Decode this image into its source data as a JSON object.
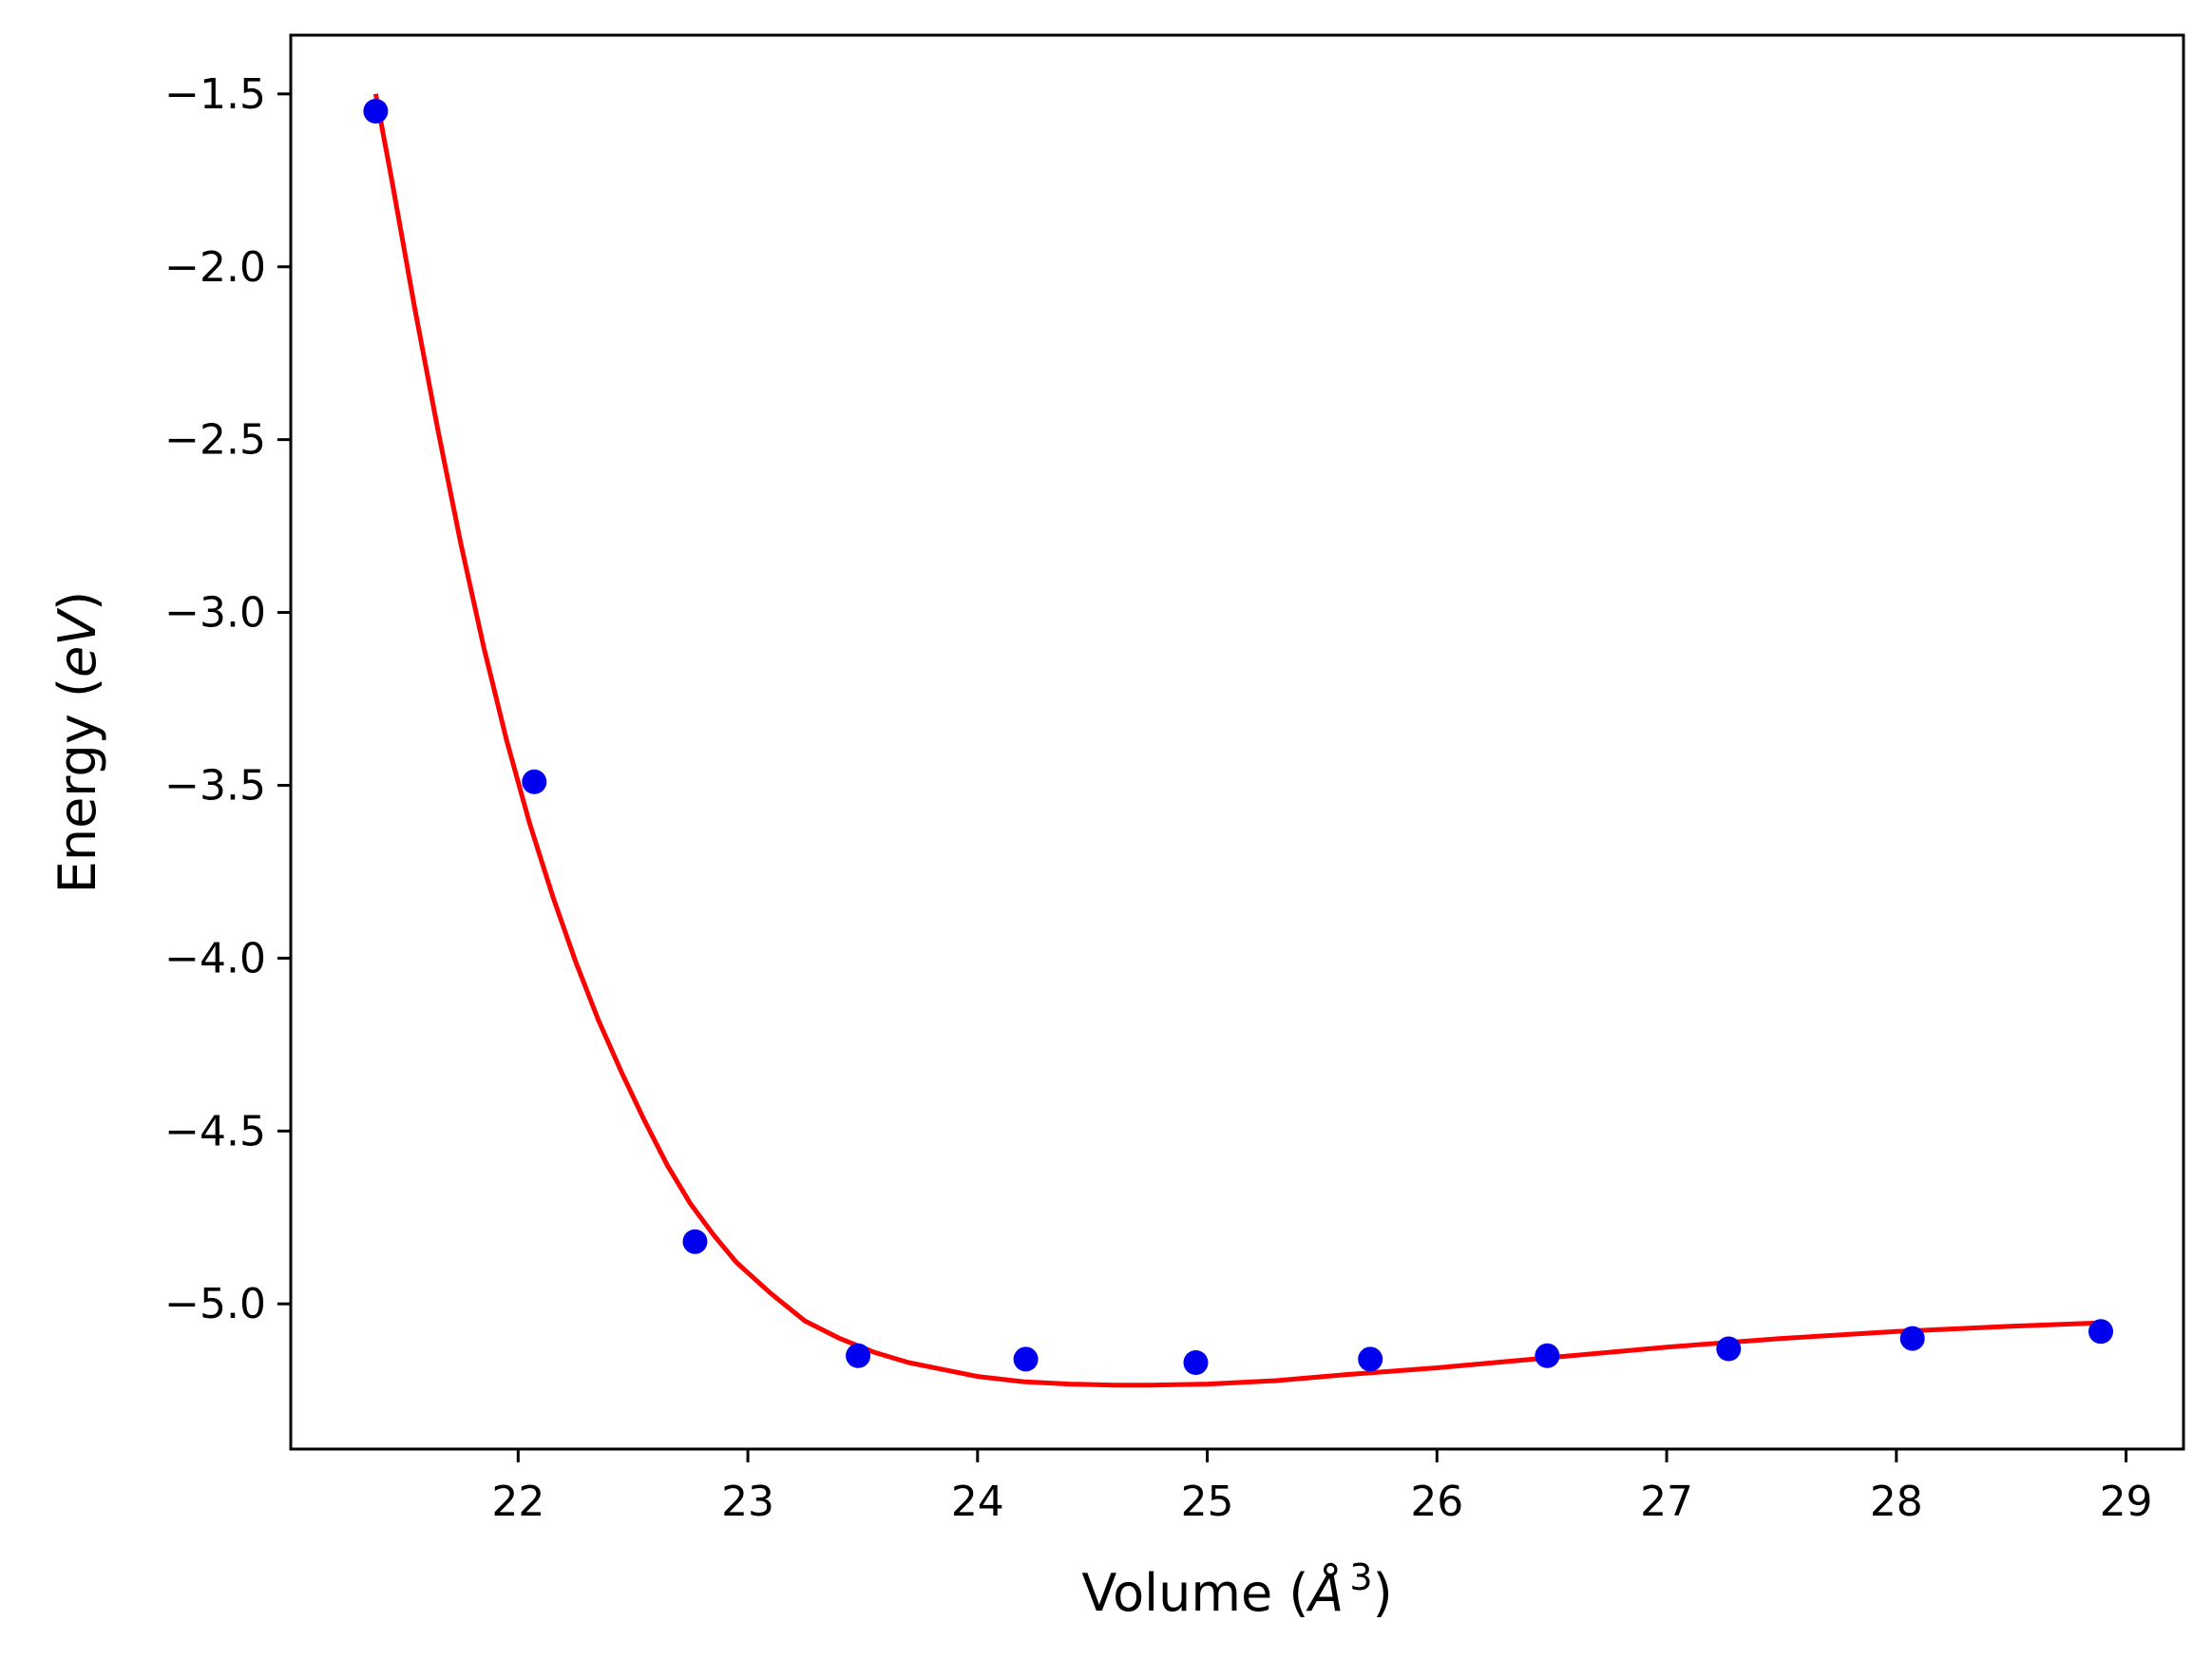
{
  "chart_data": {
    "type": "scatter",
    "xlabel": {
      "prefix": "Volume (",
      "symbol": "Å",
      "superscript": "3",
      "suffix": ")"
    },
    "ylabel": {
      "prefix": "Energy (",
      "unit": "eV",
      "suffix": ")"
    },
    "xlim": [
      21.01,
      29.25
    ],
    "ylim": [
      -5.42,
      -1.33
    ],
    "xticks": [
      22,
      23,
      24,
      25,
      26,
      27,
      28,
      29
    ],
    "yticks": [
      -1.5,
      -2.0,
      -2.5,
      -3.0,
      -3.5,
      -4.0,
      -4.5,
      -5.0
    ],
    "xtick_labels": [
      "22",
      "23",
      "24",
      "25",
      "26",
      "27",
      "28",
      "29"
    ],
    "ytick_labels": [
      "−1.5",
      "−2.0",
      "−2.5",
      "−3.0",
      "−3.5",
      "−4.0",
      "−4.5",
      "−5.0"
    ],
    "grid": false,
    "series": [
      {
        "kind": "points",
        "color": "#0000ee",
        "x": [
          21.38,
          22.07,
          22.77,
          23.48,
          24.21,
          24.95,
          25.71,
          26.48,
          27.27,
          28.07,
          28.89
        ],
        "y": [
          -1.55,
          -3.49,
          -4.82,
          -5.15,
          -5.16,
          -5.17,
          -5.16,
          -5.15,
          -5.13,
          -5.1,
          -5.08
        ]
      },
      {
        "kind": "fit-line",
        "color": "#ff0000",
        "x": [
          21.38,
          21.45,
          21.55,
          21.65,
          21.75,
          21.85,
          21.95,
          22.05,
          22.15,
          22.25,
          22.35,
          22.45,
          22.55,
          22.65,
          22.75,
          22.85,
          22.95,
          23.1,
          23.25,
          23.4,
          23.55,
          23.7,
          23.85,
          24.0,
          24.2,
          24.4,
          24.6,
          24.75,
          25.0,
          25.3,
          25.6,
          26.0,
          26.5,
          27.0,
          27.5,
          28.0,
          28.5,
          28.89
        ],
        "y": [
          -1.5,
          -1.75,
          -2.12,
          -2.47,
          -2.8,
          -3.1,
          -3.37,
          -3.61,
          -3.82,
          -4.01,
          -4.18,
          -4.33,
          -4.47,
          -4.6,
          -4.71,
          -4.8,
          -4.88,
          -4.97,
          -5.05,
          -5.1,
          -5.14,
          -5.17,
          -5.19,
          -5.21,
          -5.225,
          -5.232,
          -5.235,
          -5.235,
          -5.232,
          -5.222,
          -5.205,
          -5.185,
          -5.155,
          -5.125,
          -5.1,
          -5.08,
          -5.065,
          -5.055
        ]
      }
    ]
  }
}
